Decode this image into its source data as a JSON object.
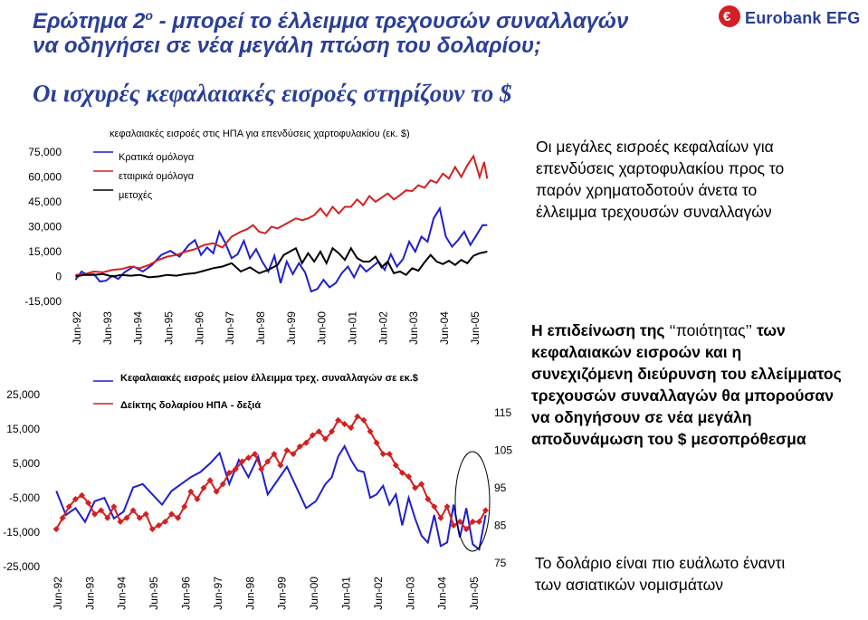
{
  "header": {
    "title_line1_pre": "Ερώτημα 2",
    "title_sup": "ο",
    "title_line1_post": " - μπορεί το έλλειμμα τρεχουσών συναλλαγών",
    "title_line2": "να οδηγήσει σε νέα μεγάλη πτώση του δολαρίου;",
    "subtitle": "Οι ισχυρές κεφαλαιακές εισροές στηρίζουν το $",
    "logo_text": "Eurobank EFG",
    "logo_mark": "€",
    "logo_icon": "eurobank-logo-icon"
  },
  "notes": {
    "note1": "Οι μεγάλες εισροές κεφαλαίων για επενδύσεις χαρτοφυλακίου προς το παρόν χρηματοδοτούν άνετα το έλλειμμα τρεχουσών συναλλαγών",
    "note2_pre": "Η επιδείνωση της ",
    "note2_quote": "‘‘ποιότητας’’",
    "note2_post": " των κεφαλαιακών εισροών και η συνεχιζόμενη διεύρυνση του ελλείμματος τρεχουσών συναλλαγών θα μπορούσαν να οδηγήσουν σε νέα μεγάλη αποδυνάμωση του $ μεσοπρόθεσμα",
    "note3": "Το δολάριο είναι πιο ευάλωτο έναντι των ασιατικών νομισμάτων"
  },
  "chart_data": [
    {
      "type": "line",
      "title": "κεφαλαιακές εισροές στις ΗΠΑ για επενδύσεις χαρτοφυλακίου (εκ. $)",
      "x_tick_labels": [
        "Jun-92",
        "Jun-93",
        "Jun-94",
        "Jun-95",
        "Jun-96",
        "Jun-97",
        "Jun-98",
        "Jun-99",
        "Jun-00",
        "Jun-01",
        "Jun-02",
        "Jun-03",
        "Jun-04",
        "Jun-05"
      ],
      "y_tick_labels": [
        "75,000",
        "60,000",
        "45,000",
        "30,000",
        "15,000",
        "0",
        "-15,000"
      ],
      "ylim": [
        -15000,
        75000
      ],
      "xlim": [
        1992.3,
        2005.9
      ],
      "series": [
        {
          "name": "Κρατικά ομόλογα",
          "color": "#1f1fd0",
          "x": [
            1992.4,
            1992.6,
            1992.8,
            1993.0,
            1993.2,
            1993.4,
            1993.6,
            1993.8,
            1994.0,
            1994.3,
            1994.6,
            1994.9,
            1995.2,
            1995.5,
            1995.8,
            1996.1,
            1996.3,
            1996.5,
            1996.7,
            1996.9,
            1997.1,
            1997.3,
            1997.5,
            1997.7,
            1997.9,
            1998.1,
            1998.3,
            1998.5,
            1998.7,
            1998.9,
            1999.1,
            1999.3,
            1999.5,
            1999.7,
            1999.9,
            2000.1,
            2000.3,
            2000.5,
            2000.7,
            2000.9,
            2001.1,
            2001.3,
            2001.5,
            2001.7,
            2001.9,
            2002.1,
            2002.3,
            2002.5,
            2002.7,
            2002.9,
            2003.1,
            2003.3,
            2003.5,
            2003.7,
            2003.9,
            2004.1,
            2004.3,
            2004.5,
            2004.7,
            2004.9,
            2005.1,
            2005.3,
            2005.5,
            2005.7,
            2005.85
          ],
          "y": [
            -2000,
            3000,
            1000,
            1500,
            -3000,
            -2500,
            500,
            -1500,
            2500,
            6000,
            3000,
            7000,
            13000,
            15500,
            12000,
            19000,
            22000,
            13000,
            17500,
            14000,
            27000,
            20000,
            11000,
            13500,
            21500,
            11000,
            16500,
            9000,
            3000,
            12500,
            -4000,
            9000,
            1500,
            8000,
            2500,
            -9000,
            -7500,
            -2000,
            -6500,
            -4000,
            2000,
            6000,
            -500,
            7000,
            3000,
            6000,
            9000,
            4000,
            13500,
            6000,
            10500,
            21000,
            15000,
            24000,
            21000,
            35000,
            41000,
            24000,
            18000,
            22000,
            27000,
            19000,
            25000,
            31000,
            31000
          ]
        },
        {
          "name": "εταιρικά ομόλογα",
          "color": "#d42020",
          "x": [
            1992.4,
            1992.7,
            1993.0,
            1993.3,
            1993.6,
            1993.9,
            1994.2,
            1994.5,
            1994.8,
            1995.1,
            1995.4,
            1995.7,
            1996.0,
            1996.3,
            1996.6,
            1996.9,
            1997.2,
            1997.5,
            1997.8,
            1998.0,
            1998.2,
            1998.4,
            1998.6,
            1998.8,
            1999.0,
            1999.2,
            1999.4,
            1999.6,
            1999.8,
            2000.0,
            2000.2,
            2000.4,
            2000.6,
            2000.8,
            2001.0,
            2001.2,
            2001.4,
            2001.6,
            2001.8,
            2002.0,
            2002.2,
            2002.4,
            2002.6,
            2002.8,
            2003.0,
            2003.2,
            2003.4,
            2003.6,
            2003.8,
            2004.0,
            2004.2,
            2004.4,
            2004.6,
            2004.8,
            2005.0,
            2005.2,
            2005.4,
            2005.6,
            2005.75,
            2005.85
          ],
          "y": [
            1000,
            1500,
            3000,
            2500,
            4000,
            4500,
            6000,
            5000,
            7000,
            10000,
            12000,
            13000,
            15000,
            16500,
            19000,
            20000,
            17500,
            24000,
            27000,
            28500,
            31000,
            27000,
            26000,
            30000,
            29000,
            31000,
            33000,
            35000,
            34000,
            35000,
            37000,
            41000,
            36500,
            42000,
            38000,
            42000,
            42000,
            46500,
            43000,
            48500,
            45000,
            47500,
            50000,
            46500,
            49000,
            52000,
            51500,
            55000,
            53500,
            58000,
            56500,
            62000,
            59000,
            66000,
            60000,
            67000,
            72500,
            60000,
            69000,
            59000
          ]
        },
        {
          "name": "μετοχές",
          "color": "#000000",
          "x": [
            1992.4,
            1992.7,
            1993.0,
            1993.3,
            1993.6,
            1993.9,
            1994.2,
            1994.5,
            1994.8,
            1995.1,
            1995.4,
            1995.7,
            1996.0,
            1996.3,
            1996.6,
            1996.9,
            1997.2,
            1997.5,
            1997.8,
            1998.1,
            1998.4,
            1998.7,
            1999.0,
            1999.2,
            1999.4,
            1999.6,
            1999.8,
            2000.0,
            2000.2,
            2000.4,
            2000.6,
            2000.8,
            2001.0,
            2001.2,
            2001.4,
            2001.6,
            2001.8,
            2002.0,
            2002.2,
            2002.4,
            2002.6,
            2002.8,
            2003.0,
            2003.2,
            2003.4,
            2003.6,
            2003.8,
            2004.0,
            2004.2,
            2004.4,
            2004.6,
            2004.8,
            2005.0,
            2005.2,
            2005.4,
            2005.6,
            2005.85
          ],
          "y": [
            0,
            1000,
            1000,
            1500,
            0,
            1000,
            500,
            1000,
            -500,
            0,
            1000,
            500,
            1500,
            2000,
            3500,
            5000,
            6000,
            8000,
            3000,
            5500,
            2000,
            4000,
            7000,
            13000,
            15000,
            17000,
            8000,
            14000,
            9000,
            15000,
            8000,
            17000,
            14000,
            10000,
            17000,
            11000,
            9000,
            9000,
            12000,
            5500,
            9000,
            2000,
            3000,
            1000,
            5000,
            3500,
            8500,
            13000,
            9000,
            7500,
            9500,
            7000,
            10000,
            8000,
            12500,
            14000,
            15000
          ]
        }
      ]
    },
    {
      "type": "line",
      "x_tick_labels": [
        "Jun-92",
        "Jun-93",
        "Jun-94",
        "Jun-95",
        "Jun-96",
        "Jun-97",
        "Jun-98",
        "Jun-99",
        "Jun-00",
        "Jun-01",
        "Jun-02",
        "Jun-03",
        "Jun-04",
        "Jun-05"
      ],
      "y_tick_labels": [
        "25,000",
        "15,000",
        "5,000",
        "-5,000",
        "-15,000",
        "-25,000"
      ],
      "y2_tick_labels": [
        "115",
        "105",
        "95",
        "85",
        "75"
      ],
      "ylim": [
        -25000,
        27000
      ],
      "y2lim": [
        75,
        117
      ],
      "xlim": [
        1992.0,
        2005.9
      ],
      "series": [
        {
          "name": "Κεφαλαιακές εισροές μείον έλλειμμα τρεχ. συναλλαγών σε εκ.$",
          "color": "#1f1fd0",
          "axis": "left",
          "x": [
            1992.4,
            1992.7,
            1993.0,
            1993.3,
            1993.6,
            1993.9,
            1994.2,
            1994.5,
            1994.8,
            1995.1,
            1995.4,
            1995.7,
            1996.0,
            1996.3,
            1996.6,
            1996.9,
            1997.2,
            1997.5,
            1997.8,
            1998.1,
            1998.4,
            1998.7,
            1999.0,
            1999.3,
            1999.6,
            1999.9,
            2000.2,
            2000.5,
            2000.8,
            2001.0,
            2001.2,
            2001.4,
            2001.6,
            2001.8,
            2002.0,
            2002.2,
            2002.4,
            2002.6,
            2002.8,
            2003.0,
            2003.2,
            2003.4,
            2003.6,
            2003.8,
            2004.0,
            2004.2,
            2004.4,
            2004.6,
            2004.8,
            2005.0,
            2005.2,
            2005.4,
            2005.6,
            2005.8
          ],
          "y": [
            -3000,
            -10000,
            -8000,
            -12000,
            -6000,
            -5000,
            -11000,
            -9000,
            -2000,
            -1000,
            -4000,
            -7000,
            -3000,
            -1000,
            1000,
            2500,
            5000,
            8000,
            -1000,
            6000,
            1000,
            7000,
            -4000,
            0,
            4000,
            -2000,
            -8000,
            -6000,
            -1000,
            1000,
            7000,
            10000,
            6000,
            3000,
            2500,
            -5000,
            -4000,
            -1500,
            -7000,
            -4000,
            -13000,
            -5000,
            -11000,
            -16000,
            -18000,
            -10000,
            -19000,
            -18000,
            -7000,
            -16500,
            -8000,
            -18500,
            -20000,
            -10000
          ]
        },
        {
          "name": "Δείκτης δολαρίου ΗΠΑ - δεξιά",
          "color": "#d42020",
          "axis": "right",
          "x": [
            1992.4,
            1992.6,
            1992.8,
            1993.0,
            1993.2,
            1993.4,
            1993.6,
            1993.8,
            1994.0,
            1994.2,
            1994.4,
            1994.6,
            1994.8,
            1995.0,
            1995.2,
            1995.4,
            1995.6,
            1995.8,
            1996.0,
            1996.2,
            1996.4,
            1996.6,
            1996.8,
            1997.0,
            1997.2,
            1997.4,
            1997.6,
            1997.8,
            1998.0,
            1998.2,
            1998.4,
            1998.6,
            1998.8,
            1999.0,
            1999.2,
            1999.4,
            1999.6,
            1999.8,
            2000.0,
            2000.2,
            2000.4,
            2000.6,
            2000.8,
            2001.0,
            2001.2,
            2001.4,
            2001.6,
            2001.8,
            2002.0,
            2002.2,
            2002.4,
            2002.6,
            2002.8,
            2003.0,
            2003.2,
            2003.4,
            2003.6,
            2003.8,
            2004.0,
            2004.2,
            2004.4,
            2004.6,
            2004.8,
            2005.0,
            2005.2,
            2005.4,
            2005.6,
            2005.8
          ],
          "y": [
            84,
            87,
            90,
            92,
            93,
            91,
            88,
            89,
            87,
            90,
            86,
            87,
            89,
            87,
            88,
            84,
            85,
            86,
            88,
            87,
            90,
            94,
            92,
            95,
            97,
            94,
            96,
            99,
            100,
            102,
            103,
            104,
            100,
            102,
            104,
            101,
            105,
            104,
            106,
            107,
            109,
            110,
            108,
            110,
            113,
            112,
            111,
            114,
            113,
            110,
            107,
            104,
            104,
            101,
            99,
            98,
            95,
            96,
            92,
            90,
            87,
            90,
            85,
            86,
            84,
            86,
            86,
            89
          ]
        }
      ]
    }
  ]
}
